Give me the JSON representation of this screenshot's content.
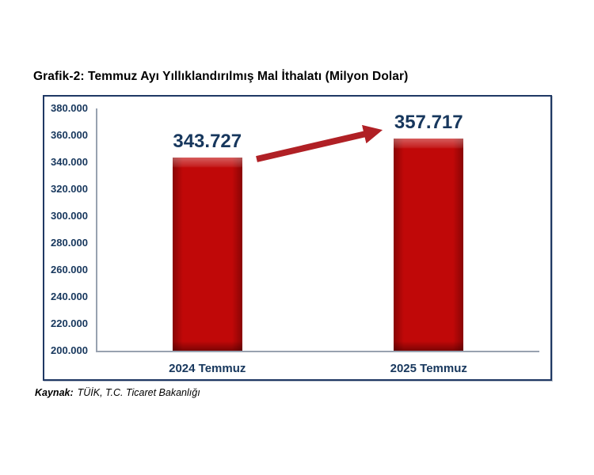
{
  "chart_data": {
    "type": "bar",
    "title": "Grafik-2: Temmuz Ayı Yıllıklandırılmış Mal İthalatı (Milyon Dolar)",
    "categories": [
      "2024 Temmuz",
      "2025 Temmuz"
    ],
    "values": [
      343727,
      357717
    ],
    "value_labels": [
      "343.727",
      "357.717"
    ],
    "xlabel": "",
    "ylabel": "",
    "ylim": [
      200000,
      380000
    ],
    "ytick_step": 20000,
    "ytick_labels": [
      "380.000",
      "360.000",
      "340.000",
      "320.000",
      "300.000",
      "280.000",
      "260.000",
      "240.000",
      "220.000",
      "200.000"
    ],
    "grid": false,
    "legend": null,
    "annotations": [
      {
        "type": "arrow",
        "from_category": "2024 Temmuz",
        "to_category": "2025 Temmuz",
        "direction": "up-right"
      }
    ],
    "colors": {
      "bar": "#C00808",
      "arrow": "#B02025",
      "tick_label": "#17375D",
      "value_label": "#17375D",
      "category_label": "#17375D",
      "axis_line": "#98A2B0",
      "frame_border": "#1F3864",
      "title": "#000000"
    }
  },
  "source": {
    "label": "Kaynak:",
    "text": "TÜİK, T.C. Ticaret Bakanlığı"
  }
}
